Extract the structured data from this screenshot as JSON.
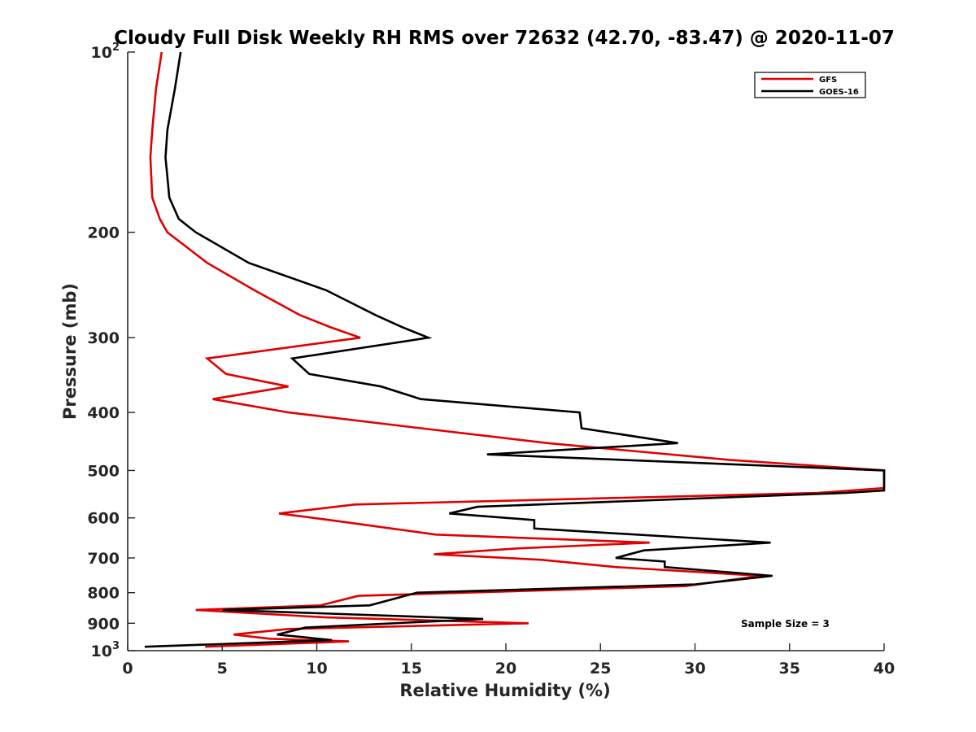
{
  "chart_data": {
    "type": "line",
    "title": "Cloudy Full Disk Weekly RH RMS over 72632 (42.70, -83.47) @ 2020-11-07",
    "xlabel": "Relative Humidity (%)",
    "ylabel": "Pressure (mb)",
    "xlim": [
      0,
      40
    ],
    "ylim": [
      100,
      1000
    ],
    "y_scale": "log",
    "y_reversed": true,
    "x_ticks": [
      "0",
      "5",
      "10",
      "15",
      "20",
      "25",
      "30",
      "35",
      "40"
    ],
    "y_ticks": [
      {
        "value": 100,
        "base": "10",
        "exp": "2",
        "label": ""
      },
      {
        "value": 200,
        "base": "",
        "exp": "",
        "label": "200"
      },
      {
        "value": 300,
        "base": "",
        "exp": "",
        "label": "300"
      },
      {
        "value": 400,
        "base": "",
        "exp": "",
        "label": "400"
      },
      {
        "value": 500,
        "base": "",
        "exp": "",
        "label": "500"
      },
      {
        "value": 600,
        "base": "",
        "exp": "",
        "label": "600"
      },
      {
        "value": 700,
        "base": "",
        "exp": "",
        "label": "700"
      },
      {
        "value": 800,
        "base": "",
        "exp": "",
        "label": "800"
      },
      {
        "value": 900,
        "base": "",
        "exp": "",
        "label": "900"
      },
      {
        "value": 1000,
        "base": "10",
        "exp": "3",
        "label": ""
      }
    ],
    "grid": false,
    "legend_position": "top-right",
    "annotation": "Sample Size = 3",
    "series": [
      {
        "name": "GFS",
        "color": "#e00000",
        "points": [
          [
            1.8,
            100
          ],
          [
            1.5,
            115
          ],
          [
            1.3,
            135
          ],
          [
            1.2,
            150
          ],
          [
            1.3,
            175
          ],
          [
            1.7,
            190
          ],
          [
            2.1,
            200
          ],
          [
            4.2,
            225
          ],
          [
            6.7,
            250
          ],
          [
            9.1,
            275
          ],
          [
            10.7,
            288
          ],
          [
            12.3,
            300
          ],
          [
            4.2,
            325
          ],
          [
            5.2,
            345
          ],
          [
            8.5,
            362
          ],
          [
            4.5,
            380
          ],
          [
            8.5,
            400
          ],
          [
            15.5,
            425
          ],
          [
            22.2,
            450
          ],
          [
            31.8,
            480
          ],
          [
            40.0,
            500
          ],
          [
            40.0,
            535
          ],
          [
            36.5,
            545
          ],
          [
            12.0,
            570
          ],
          [
            8.0,
            590
          ],
          [
            10.7,
            605
          ],
          [
            16.3,
            640
          ],
          [
            27.6,
            660
          ],
          [
            20.5,
            675
          ],
          [
            16.2,
            690
          ],
          [
            21.9,
            705
          ],
          [
            25.8,
            725
          ],
          [
            33.5,
            750
          ],
          [
            29.5,
            780
          ],
          [
            12.2,
            810
          ],
          [
            10.2,
            840
          ],
          [
            3.6,
            855
          ],
          [
            10.5,
            880
          ],
          [
            21.2,
            900
          ],
          [
            8.5,
            920
          ],
          [
            5.6,
            940
          ],
          [
            7.5,
            955
          ],
          [
            11.7,
            965
          ],
          [
            4.1,
            985
          ]
        ]
      },
      {
        "name": "GOES-16",
        "color": "#000000",
        "points": [
          [
            2.8,
            100
          ],
          [
            2.5,
            115
          ],
          [
            2.1,
            135
          ],
          [
            2.0,
            150
          ],
          [
            2.2,
            175
          ],
          [
            2.7,
            190
          ],
          [
            3.6,
            200
          ],
          [
            6.4,
            225
          ],
          [
            10.5,
            250
          ],
          [
            13.1,
            275
          ],
          [
            14.5,
            288
          ],
          [
            15.9,
            300
          ],
          [
            8.7,
            325
          ],
          [
            9.6,
            345
          ],
          [
            13.4,
            362
          ],
          [
            15.5,
            380
          ],
          [
            23.9,
            400
          ],
          [
            24.0,
            425
          ],
          [
            29.1,
            450
          ],
          [
            19.0,
            470
          ],
          [
            40.0,
            500
          ],
          [
            40.0,
            540
          ],
          [
            38.0,
            545
          ],
          [
            18.5,
            575
          ],
          [
            17.0,
            590
          ],
          [
            21.5,
            605
          ],
          [
            21.5,
            625
          ],
          [
            34.0,
            660
          ],
          [
            27.3,
            680
          ],
          [
            25.8,
            700
          ],
          [
            28.4,
            710
          ],
          [
            28.4,
            725
          ],
          [
            34.1,
            750
          ],
          [
            30.0,
            775
          ],
          [
            15.3,
            800
          ],
          [
            12.8,
            840
          ],
          [
            5.0,
            855
          ],
          [
            18.8,
            885
          ],
          [
            9.4,
            915
          ],
          [
            7.9,
            940
          ],
          [
            10.8,
            960
          ],
          [
            0.9,
            985
          ]
        ]
      }
    ]
  }
}
